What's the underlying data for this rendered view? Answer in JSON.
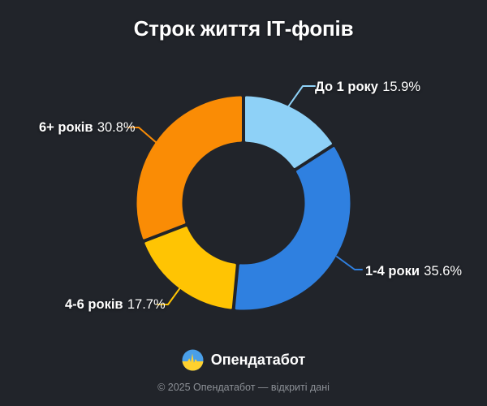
{
  "title": "Строк життя ІТ-фопів",
  "chart_data": {
    "type": "pie",
    "subtype": "donut",
    "title": "Строк життя ІТ-фопів",
    "unit": "%",
    "start_angle_deg": 0,
    "direction": "clockwise",
    "donut_hole_ratio": 0.59,
    "segments": [
      {
        "label": "До 1 року",
        "value": 15.9,
        "value_text": "15.9%",
        "color": "#8ED1F7"
      },
      {
        "label": "1-4 роки",
        "value": 35.6,
        "value_text": "35.6%",
        "color": "#2F80E0"
      },
      {
        "label": "4-6 років",
        "value": 17.7,
        "value_text": "17.7%",
        "color": "#FFC403"
      },
      {
        "label": "6+ років",
        "value": 30.8,
        "value_text": "30.8%",
        "color": "#FA8C05"
      }
    ]
  },
  "footer": {
    "brand": "Опендатабот",
    "copyright": "© 2025 Опендатабот — відкриті дані"
  },
  "colors": {
    "background": "#21242A",
    "text": "#FFFFFF",
    "muted_text": "#8C9096",
    "logo_blue": "#4A9FE8",
    "logo_yellow": "#FFD12E"
  }
}
